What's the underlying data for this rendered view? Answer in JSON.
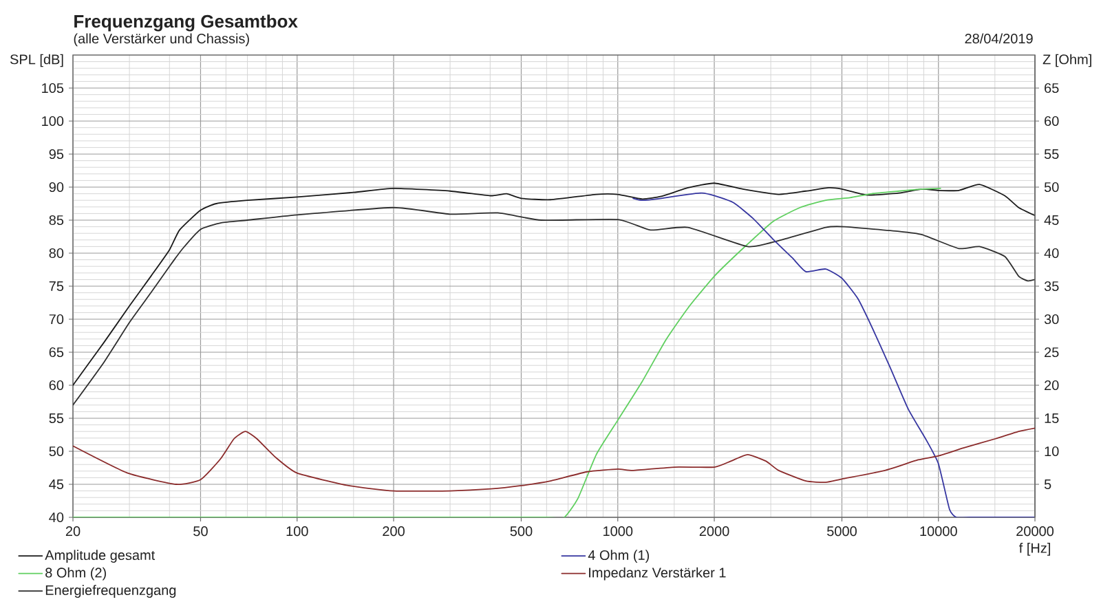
{
  "chart_data": {
    "type": "line",
    "title": "Frequenzgang Gesamtbox",
    "subtitle": "(alle Verstärker und Chassis)",
    "xlabel": "f [Hz]",
    "ylabel": "SPL [dB]",
    "y2label": "Z [Ohm]",
    "annotations": [
      "28/04/2019"
    ],
    "log": "x",
    "grid": true,
    "legend": "bottom",
    "xlim": [
      20,
      20000
    ],
    "xticks": [
      20,
      {
        "value": 30,
        "label": null
      },
      {
        "value": 40,
        "label": null
      },
      50,
      {
        "value": 60,
        "label": null
      },
      {
        "value": 70,
        "label": null
      },
      {
        "value": 80,
        "label": null
      },
      {
        "value": 90,
        "label": null
      },
      100,
      {
        "value": 150,
        "label": null
      },
      200,
      {
        "value": 300,
        "label": null
      },
      {
        "value": 400,
        "label": null
      },
      500,
      {
        "value": 600,
        "label": null
      },
      {
        "value": 700,
        "label": null
      },
      {
        "value": 800,
        "label": null
      },
      {
        "value": 900,
        "label": null
      },
      1000,
      {
        "value": 1500,
        "label": null
      },
      2000,
      {
        "value": 3000,
        "label": null
      },
      {
        "value": 4000,
        "label": null
      },
      5000,
      {
        "value": 6000,
        "label": null
      },
      {
        "value": 7000,
        "label": null
      },
      {
        "value": 8000,
        "label": null
      },
      {
        "value": 9000,
        "label": null
      },
      10000,
      {
        "value": 15000,
        "label": null
      },
      20000
    ],
    "ylim": [
      40,
      110
    ],
    "yticks": [
      40,
      {
        "value": 41,
        "label": null
      },
      {
        "value": 42,
        "label": null
      },
      {
        "value": 43,
        "label": null
      },
      {
        "value": 44,
        "label": null
      },
      45,
      {
        "value": 46,
        "label": null
      },
      {
        "value": 47,
        "label": null
      },
      {
        "value": 48,
        "label": null
      },
      {
        "value": 49,
        "label": null
      },
      50,
      {
        "value": 51,
        "label": null
      },
      {
        "value": 52,
        "label": null
      },
      {
        "value": 53,
        "label": null
      },
      {
        "value": 54,
        "label": null
      },
      55,
      {
        "value": 56,
        "label": null
      },
      {
        "value": 57,
        "label": null
      },
      {
        "value": 58,
        "label": null
      },
      {
        "value": 59,
        "label": null
      },
      60,
      {
        "value": 61,
        "label": null
      },
      {
        "value": 62,
        "label": null
      },
      {
        "value": 63,
        "label": null
      },
      {
        "value": 64,
        "label": null
      },
      65,
      {
        "value": 66,
        "label": null
      },
      {
        "value": 67,
        "label": null
      },
      {
        "value": 68,
        "label": null
      },
      {
        "value": 69,
        "label": null
      },
      70,
      {
        "value": 71,
        "label": null
      },
      {
        "value": 72,
        "label": null
      },
      {
        "value": 73,
        "label": null
      },
      {
        "value": 74,
        "label": null
      },
      75,
      {
        "value": 76,
        "label": null
      },
      {
        "value": 77,
        "label": null
      },
      {
        "value": 78,
        "label": null
      },
      {
        "value": 79,
        "label": null
      },
      80,
      {
        "value": 81,
        "label": null
      },
      {
        "value": 82,
        "label": null
      },
      {
        "value": 83,
        "label": null
      },
      {
        "value": 84,
        "label": null
      },
      85,
      {
        "value": 86,
        "label": null
      },
      {
        "value": 87,
        "label": null
      },
      {
        "value": 88,
        "label": null
      },
      {
        "value": 89,
        "label": null
      },
      90,
      {
        "value": 91,
        "label": null
      },
      {
        "value": 92,
        "label": null
      },
      {
        "value": 93,
        "label": null
      },
      {
        "value": 94,
        "label": null
      },
      95,
      {
        "value": 96,
        "label": null
      },
      {
        "value": 97,
        "label": null
      },
      {
        "value": 98,
        "label": null
      },
      {
        "value": 99,
        "label": null
      },
      100,
      {
        "value": 101,
        "label": null
      },
      {
        "value": 102,
        "label": null
      },
      {
        "value": 103,
        "label": null
      },
      {
        "value": 104,
        "label": null
      },
      105,
      {
        "value": 106,
        "label": null
      },
      {
        "value": 107,
        "label": null
      },
      {
        "value": 108,
        "label": null
      },
      {
        "value": 109,
        "label": null
      }
    ],
    "y2lim": [
      0,
      70
    ],
    "y2ticks": [
      5,
      10,
      15,
      20,
      25,
      30,
      35,
      40,
      45,
      50,
      55,
      60,
      65
    ],
    "series": [
      {
        "name": "Amplitude gesamt",
        "color": "#1a1a1a",
        "x": [
          20,
          25,
          30,
          35,
          40,
          43,
          50,
          56,
          70,
          100,
          150,
          200,
          300,
          400,
          450,
          500,
          617,
          857,
          1000,
          1193,
          1367,
          1656,
          2000,
          2455,
          3176,
          3860,
          4550,
          5000,
          5984,
          7540,
          8890,
          10000,
          11580,
          13430,
          16100,
          17800,
          20000
        ],
        "values": [
          60,
          66.5,
          72,
          76.5,
          80.5,
          83.5,
          86.5,
          87.5,
          88,
          88.5,
          89.2,
          89.8,
          89.4,
          88.7,
          89,
          88.3,
          88.1,
          88.9,
          88.9,
          88.2,
          88.6,
          89.9,
          90.6,
          89.7,
          88.9,
          89.4,
          89.9,
          89.7,
          88.8,
          89.1,
          89.7,
          89.5,
          89.5,
          90.4,
          88.7,
          86.9,
          85.7
        ]
      },
      {
        "name": "8 Ohm (2)",
        "color": "#5fcf5f",
        "x": [
          20,
          50,
          100,
          200,
          300,
          400,
          500,
          600,
          681,
          752,
          857,
          1000,
          1193,
          1410,
          1656,
          2000,
          2455,
          3050,
          3700,
          4450,
          5300,
          6190,
          7540,
          8890,
          10150
        ],
        "values": [
          40,
          40,
          40,
          40,
          40,
          40,
          40,
          40,
          40,
          42.9,
          49.5,
          54.7,
          60.6,
          66.8,
          71.7,
          76.5,
          80.7,
          84.8,
          86.9,
          88,
          88.4,
          89,
          89.4,
          89.7,
          89.8
        ]
      },
      {
        "name": "Energiefrequenzgang",
        "color": "#2e2e2e",
        "x": [
          20,
          25,
          30,
          35,
          40,
          44,
          50,
          58,
          70,
          100,
          200,
          300,
          423,
          578,
          1000,
          1265,
          1656,
          2543,
          3176,
          4450,
          5100,
          7540,
          8890,
          11580,
          13430,
          16100,
          17800,
          19000,
          20000
        ],
        "values": [
          57,
          63.5,
          69.5,
          74,
          78,
          80.7,
          83.6,
          84.6,
          85,
          85.8,
          86.9,
          85.9,
          86.1,
          85,
          85.1,
          83.5,
          83.9,
          81,
          81.9,
          83.9,
          84,
          83.3,
          82.8,
          80.7,
          81,
          79.5,
          76.5,
          75.8,
          76
        ]
      },
      {
        "name": "4 Ohm (1)",
        "color": "#3535a0",
        "x": [
          1117,
          1193,
          1367,
          1656,
          1830,
          2000,
          2303,
          2650,
          3050,
          3500,
          3860,
          4450,
          5000,
          5610,
          6190,
          7070,
          8050,
          9190,
          10000,
          10830,
          11380,
          12500,
          14000,
          16000,
          18000,
          20000
        ],
        "values": [
          88.3,
          88,
          88.3,
          88.9,
          89.1,
          88.7,
          87.6,
          85.2,
          82.1,
          79.3,
          77.2,
          77.6,
          76.2,
          73.1,
          68.9,
          62.7,
          56.4,
          51.6,
          48.1,
          41.2,
          40,
          40,
          40,
          40,
          40,
          40
        ]
      },
      {
        "name": "Impedanz Verstärker 1",
        "color": "#8b2b2b",
        "axis": "y2",
        "x": [
          20,
          29.6,
          42,
          50,
          57.6,
          63.6,
          69,
          74.9,
          85.6,
          100,
          144.8,
          200,
          300,
          402,
          500,
          617,
          803,
          1000,
          1117,
          1503,
          2000,
          2250,
          2540,
          2900,
          3176,
          3860,
          4450,
          5000,
          6810,
          8640,
          10000,
          11970,
          15070,
          17800,
          20000
        ],
        "values": [
          10.8,
          6.7,
          5,
          5.7,
          8.8,
          11.9,
          13,
          11.9,
          9.1,
          6.7,
          4.8,
          4,
          4,
          4.3,
          4.8,
          5.5,
          6.9,
          7.3,
          7.1,
          7.6,
          7.6,
          8.5,
          9.5,
          8.5,
          7.1,
          5.5,
          5.3,
          5.8,
          7.1,
          8.7,
          9.3,
          10.5,
          11.9,
          13,
          13.5
        ]
      }
    ]
  }
}
